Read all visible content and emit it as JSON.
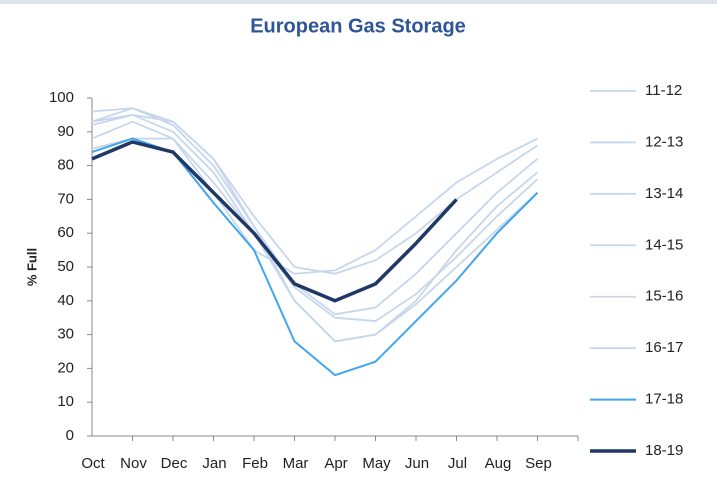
{
  "chart_data": {
    "type": "line",
    "title": "European Gas Storage",
    "y_label": "% Full",
    "categories": [
      "Oct",
      "Nov",
      "Dec",
      "Jan",
      "Feb",
      "Mar",
      "Apr",
      "May",
      "Jun",
      "Jul",
      "Aug",
      "Sep"
    ],
    "ylim": [
      0,
      100
    ],
    "yticks": [
      0,
      10,
      20,
      30,
      40,
      50,
      60,
      70,
      80,
      90,
      100
    ],
    "grid": false,
    "legend": "right",
    "series": [
      {
        "name": "11-12",
        "color": "#c6d6ec",
        "line_width": 1.8,
        "values": [
          92,
          95,
          93,
          82,
          65,
          50,
          48,
          52,
          60,
          70,
          78,
          86
        ]
      },
      {
        "name": "12-13",
        "color": "#c6d6ec",
        "line_width": 1.8,
        "values": [
          93,
          95,
          90,
          78,
          60,
          40,
          28,
          30,
          40,
          55,
          68,
          78
        ]
      },
      {
        "name": "13-14",
        "color": "#c6d6ec",
        "line_width": 1.8,
        "values": [
          88,
          93,
          88,
          72,
          55,
          48,
          49,
          55,
          65,
          75,
          82,
          88
        ]
      },
      {
        "name": "14-15",
        "color": "#c6d6ec",
        "line_width": 1.8,
        "values": [
          93,
          97,
          92,
          80,
          62,
          45,
          36,
          38,
          48,
          60,
          72,
          82
        ]
      },
      {
        "name": "15-16",
        "color": "#c6d6ec",
        "line_width": 1.8,
        "values": [
          85,
          88,
          88,
          75,
          60,
          44,
          35,
          34,
          42,
          53,
          65,
          76
        ]
      },
      {
        "name": "16-17",
        "color": "#c6d6ec",
        "line_width": 1.8,
        "values": [
          96,
          97,
          93,
          82,
          62,
          40,
          28,
          30,
          39,
          50,
          61,
          72
        ]
      },
      {
        "name": "17-18",
        "color": "#41a5ee",
        "line_width": 2,
        "values": [
          84,
          88,
          84,
          69,
          55,
          28,
          18,
          22,
          34,
          46,
          60,
          72
        ]
      },
      {
        "name": "18-19",
        "color": "#1f3864",
        "line_width": 3.5,
        "values": [
          82,
          87,
          84,
          72,
          60,
          45,
          40,
          45,
          57,
          70,
          null,
          null
        ]
      }
    ]
  }
}
